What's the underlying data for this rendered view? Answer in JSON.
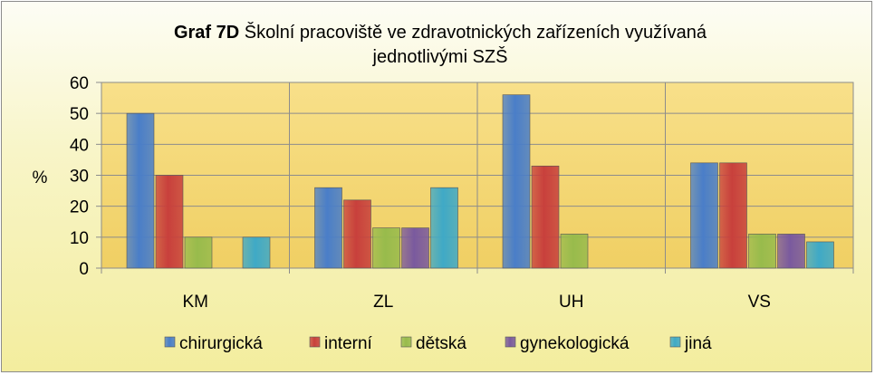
{
  "chart_data": {
    "type": "bar",
    "title_bold": "Graf 7D",
    "title_line1_rest": "Školní pracoviště ve zdravotnických zařízeních využívaná",
    "title_line2": "jednotlivými SZŠ",
    "ylabel": "%",
    "xlabel": "",
    "ylim": [
      0,
      60
    ],
    "yticks": [
      0,
      10,
      20,
      30,
      40,
      50,
      60
    ],
    "categories": [
      "KM",
      "ZL",
      "UH",
      "VS"
    ],
    "series": [
      {
        "name": "chirurgická",
        "color": "#4a7ec8",
        "values": [
          50,
          26,
          56,
          34
        ]
      },
      {
        "name": "interní",
        "color": "#c8403c",
        "values": [
          30,
          22,
          33,
          34
        ]
      },
      {
        "name": "dětská",
        "color": "#98bb4c",
        "values": [
          10,
          13,
          11,
          11
        ]
      },
      {
        "name": "gynekologická",
        "color": "#7a5a9e",
        "values": [
          0,
          13,
          0,
          11
        ]
      },
      {
        "name": "jiná",
        "color": "#3fa9c6",
        "values": [
          10,
          26,
          0,
          8.5
        ]
      }
    ],
    "grid": true,
    "legend_position": "bottom"
  }
}
